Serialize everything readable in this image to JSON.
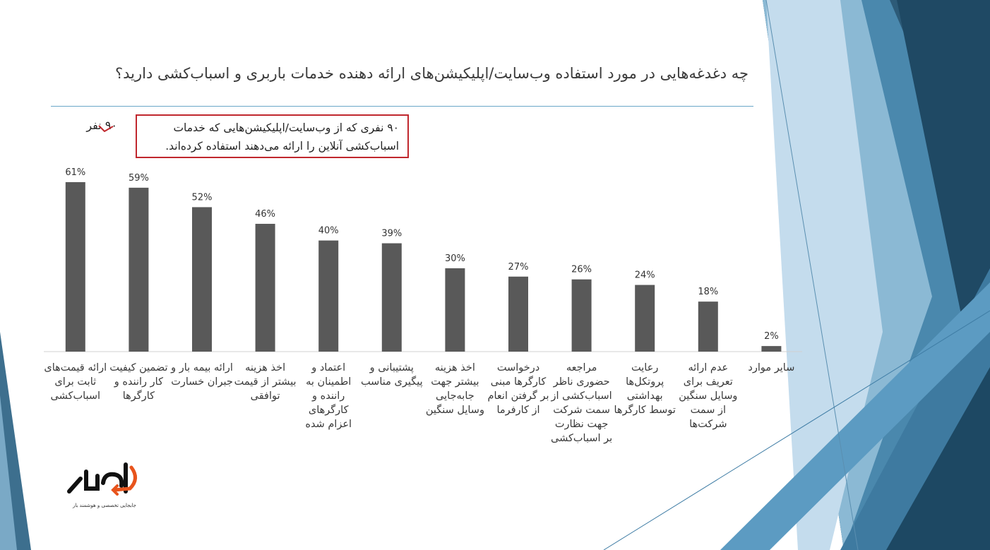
{
  "slide": {
    "title": "چه دغدغه‌هایی در مورد استفاده وب‌سایت/اپلیکیشن‌های ارائه دهنده خدمات باربری و اسباب‌کشی دارید؟",
    "respondents": "۹۰ نفر",
    "note": "۹۰ نفری که از وب‌سایت/اپلیکیشن‌هایی که خدمات اسباب‌کشی آنلاین را ارائه می‌دهند استفاده کرده‌اند.",
    "logo_tagline": "جابجایی تخصصی و هوشمند بار"
  },
  "colors": {
    "bar": "#595959",
    "note_border": "#c0272d",
    "title_rule": "#6aa6c8",
    "logo_accent": "#e8541c"
  },
  "chart_data": {
    "type": "bar",
    "categories": [
      "ارائه قیمت‌های ثابت برای اسباب‌کشی",
      "تضمین کیفیت کار راننده و کارگرها",
      "ارائه بیمه بار و جبران خسارت",
      "اخذ هزینه بیشتر از قیمت توافقی",
      "اعتماد و اطمینان به راننده و کارگرهای اعزام شده",
      "پشتیبانی و پیگیری مناسب",
      "اخذ هزینه بیشتر جهت جابه‌جایی وسایل سنگین",
      "درخواست کارگرها مبنی بر گرفتن انعام از کارفرما",
      "مراجعه حضوری ناظر اسباب‌کشی از سمت شرکت جهت نظارت بر اسباب‌کشی",
      "رعایت پروتکل‌ها بهداشتی توسط کارگرها",
      "عدم ارائه تعریف برای وسایل سنگین از سمت شرکت‌ها",
      "سایر موارد"
    ],
    "values": [
      61,
      59,
      52,
      46,
      40,
      39,
      30,
      27,
      26,
      24,
      18,
      2
    ],
    "value_labels": [
      "61%",
      "59%",
      "52%",
      "46%",
      "40%",
      "39%",
      "30%",
      "27%",
      "26%",
      "24%",
      "18%",
      "2%"
    ],
    "ylim": [
      0,
      70
    ],
    "grid": false,
    "legend": "none"
  }
}
